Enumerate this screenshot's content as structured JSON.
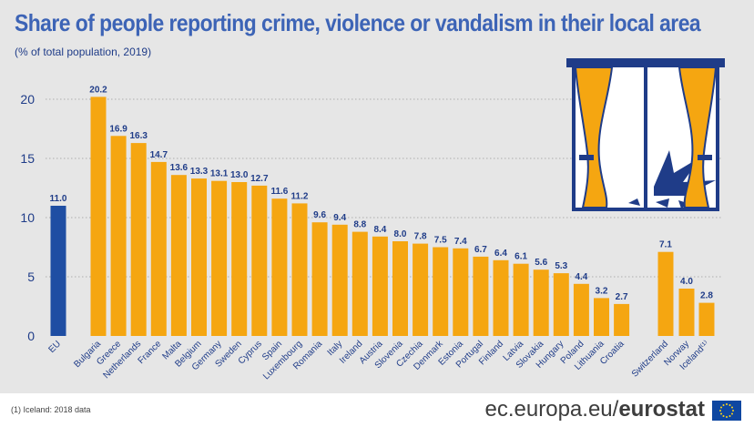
{
  "title": "Share of people reporting crime, violence or vandalism in their local area",
  "subtitle": "(% of total population, 2019)",
  "footnote": "(1)  Iceland: 2018 data",
  "site": {
    "prefix": "ec.europa.eu/",
    "brand": "eurostat"
  },
  "colors": {
    "eu_bar": "#1f4ea3",
    "country_bar": "#f5a611",
    "label": "#1f3c88",
    "grid": "#9a9a9a",
    "background": "#e6e6e6"
  },
  "icons": [
    "broken-window-illustration",
    "eu-flag-icon"
  ],
  "chart_data": {
    "type": "bar",
    "title": "Share of people reporting crime, violence or vandalism in their local area",
    "subtitle": "(% of total population, 2019)",
    "xlabel": "",
    "ylabel": "",
    "ylim": [
      0,
      20
    ],
    "yticks": [
      0,
      5,
      10,
      15,
      20
    ],
    "grid": "horizontal dashed",
    "legend": "none",
    "categories": [
      "EU",
      "Bulgaria",
      "Greece",
      "Netherlands",
      "France",
      "Malta",
      "Belgium",
      "Germany",
      "Sweden",
      "Cyprus",
      "Spain",
      "Luxembourg",
      "Romania",
      "Italy",
      "Ireland",
      "Austria",
      "Slovenia",
      "Czechia",
      "Denmark",
      "Estonia",
      "Portugal",
      "Finland",
      "Latvia",
      "Slovakia",
      "Hungary",
      "Poland",
      "Lithuania",
      "Croatia",
      "Switzerland",
      "Norway",
      "Iceland⁽¹⁾"
    ],
    "values": [
      11.0,
      20.2,
      16.9,
      16.3,
      14.7,
      13.6,
      13.3,
      13.1,
      13.0,
      12.7,
      11.6,
      11.2,
      9.6,
      9.4,
      8.8,
      8.4,
      8.0,
      7.8,
      7.5,
      7.4,
      6.7,
      6.4,
      6.1,
      5.6,
      5.3,
      4.4,
      3.2,
      2.7,
      7.1,
      4.0,
      2.8
    ],
    "value_labels": [
      "11.0",
      "20.2",
      "16.9",
      "16.3",
      "14.7",
      "13.6",
      "13.3",
      "13.1",
      "13.0",
      "12.7",
      "11.6",
      "11.2",
      "9.6",
      "9.4",
      "8.8",
      "8.4",
      "8.0",
      "7.8",
      "7.5",
      "7.4",
      "6.7",
      "6.4",
      "6.1",
      "5.6",
      "5.3",
      "4.4",
      "3.2",
      "2.7",
      "7.1",
      "4.0",
      "2.8"
    ],
    "groups": [
      "eu",
      "member",
      "member",
      "member",
      "member",
      "member",
      "member",
      "member",
      "member",
      "member",
      "member",
      "member",
      "member",
      "member",
      "member",
      "member",
      "member",
      "member",
      "member",
      "member",
      "member",
      "member",
      "member",
      "member",
      "member",
      "member",
      "member",
      "member",
      "efta",
      "efta",
      "efta"
    ]
  }
}
